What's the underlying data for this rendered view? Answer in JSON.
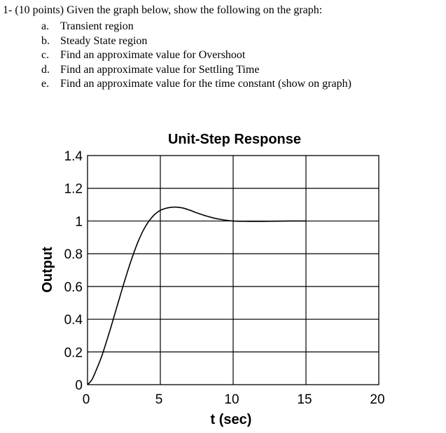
{
  "question": {
    "stem": "1-  (10 points) Given the graph below, show the following on the graph:",
    "items": [
      {
        "marker": "a.",
        "text": "Transient region"
      },
      {
        "marker": "b.",
        "text": "Steady State region"
      },
      {
        "marker": "c.",
        "text": "Find an approximate value for Overshoot"
      },
      {
        "marker": "d.",
        "text": "Find an approximate value for Settling Time"
      },
      {
        "marker": "e.",
        "text": "Find an approximate value for the time constant (show on graph)"
      }
    ]
  },
  "chart_data": {
    "type": "line",
    "title": "Unit-Step Response",
    "xlabel": "t (sec)",
    "ylabel": "Output",
    "xlim": [
      0,
      20
    ],
    "ylim": [
      0,
      1.4
    ],
    "xticks": [
      0,
      5,
      10,
      15,
      20
    ],
    "xtick_labels": [
      "0",
      "5",
      "10",
      "15",
      "20"
    ],
    "yticks": [
      0,
      0.2,
      0.4,
      0.6,
      0.8,
      1,
      1.2,
      1.4
    ],
    "ytick_labels": [
      "0",
      "0.2",
      "0.4",
      "0.6",
      "0.8",
      "1",
      "1.2",
      "1.4"
    ],
    "grid": true,
    "series": [
      {
        "x": [
          0,
          0.3,
          0.6,
          1,
          1.5,
          2,
          2.5,
          3,
          3.5,
          4,
          4.5,
          5,
          5.5,
          6,
          6.5,
          7,
          7.5,
          8,
          8.5,
          9,
          9.5,
          10,
          11,
          12,
          13,
          14,
          15
        ],
        "y": [
          0,
          0.03,
          0.09,
          0.18,
          0.32,
          0.47,
          0.62,
          0.76,
          0.88,
          0.97,
          1.03,
          1.065,
          1.08,
          1.085,
          1.08,
          1.067,
          1.05,
          1.035,
          1.022,
          1.012,
          1.005,
          1.0,
          0.998,
          0.998,
          0.999,
          1.0,
          1.0
        ]
      }
    ]
  }
}
